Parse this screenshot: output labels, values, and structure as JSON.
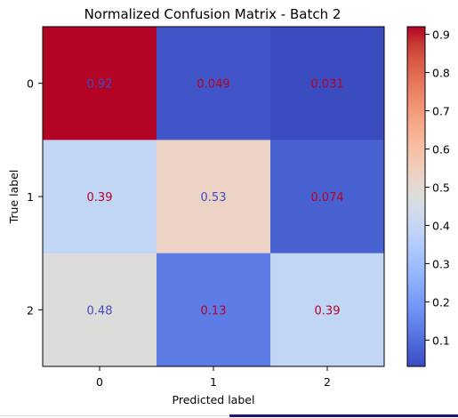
{
  "chart_data": {
    "type": "heatmap",
    "title": "Normalized Confusion Matrix - Batch 2",
    "xlabel": "Predicted label",
    "ylabel": "True label",
    "x_categories": [
      "0",
      "1",
      "2"
    ],
    "y_categories": [
      "0",
      "1",
      "2"
    ],
    "values": [
      [
        0.92,
        0.049,
        0.031
      ],
      [
        0.39,
        0.53,
        0.074
      ],
      [
        0.48,
        0.13,
        0.39
      ]
    ],
    "value_labels": [
      [
        "0.92",
        "0.049",
        "0.031"
      ],
      [
        "0.39",
        "0.53",
        "0.074"
      ],
      [
        "0.48",
        "0.13",
        "0.39"
      ]
    ],
    "colormap": "coolwarm",
    "colorbar": {
      "range": [
        0.031,
        0.92
      ],
      "ticks": [
        0.1,
        0.2,
        0.3,
        0.4,
        0.5,
        0.6,
        0.7,
        0.8,
        0.9
      ],
      "tick_labels": [
        "0.1",
        "0.2",
        "0.3",
        "0.4",
        "0.5",
        "0.6",
        "0.7",
        "0.8",
        "0.9"
      ]
    },
    "text_colors": {
      "on_high": "#3b4cc0",
      "on_low": "#b40426"
    }
  },
  "colors": {
    "background": "#ffffff",
    "axis": "#000000",
    "bottom_bar": "#1a1a6e"
  }
}
